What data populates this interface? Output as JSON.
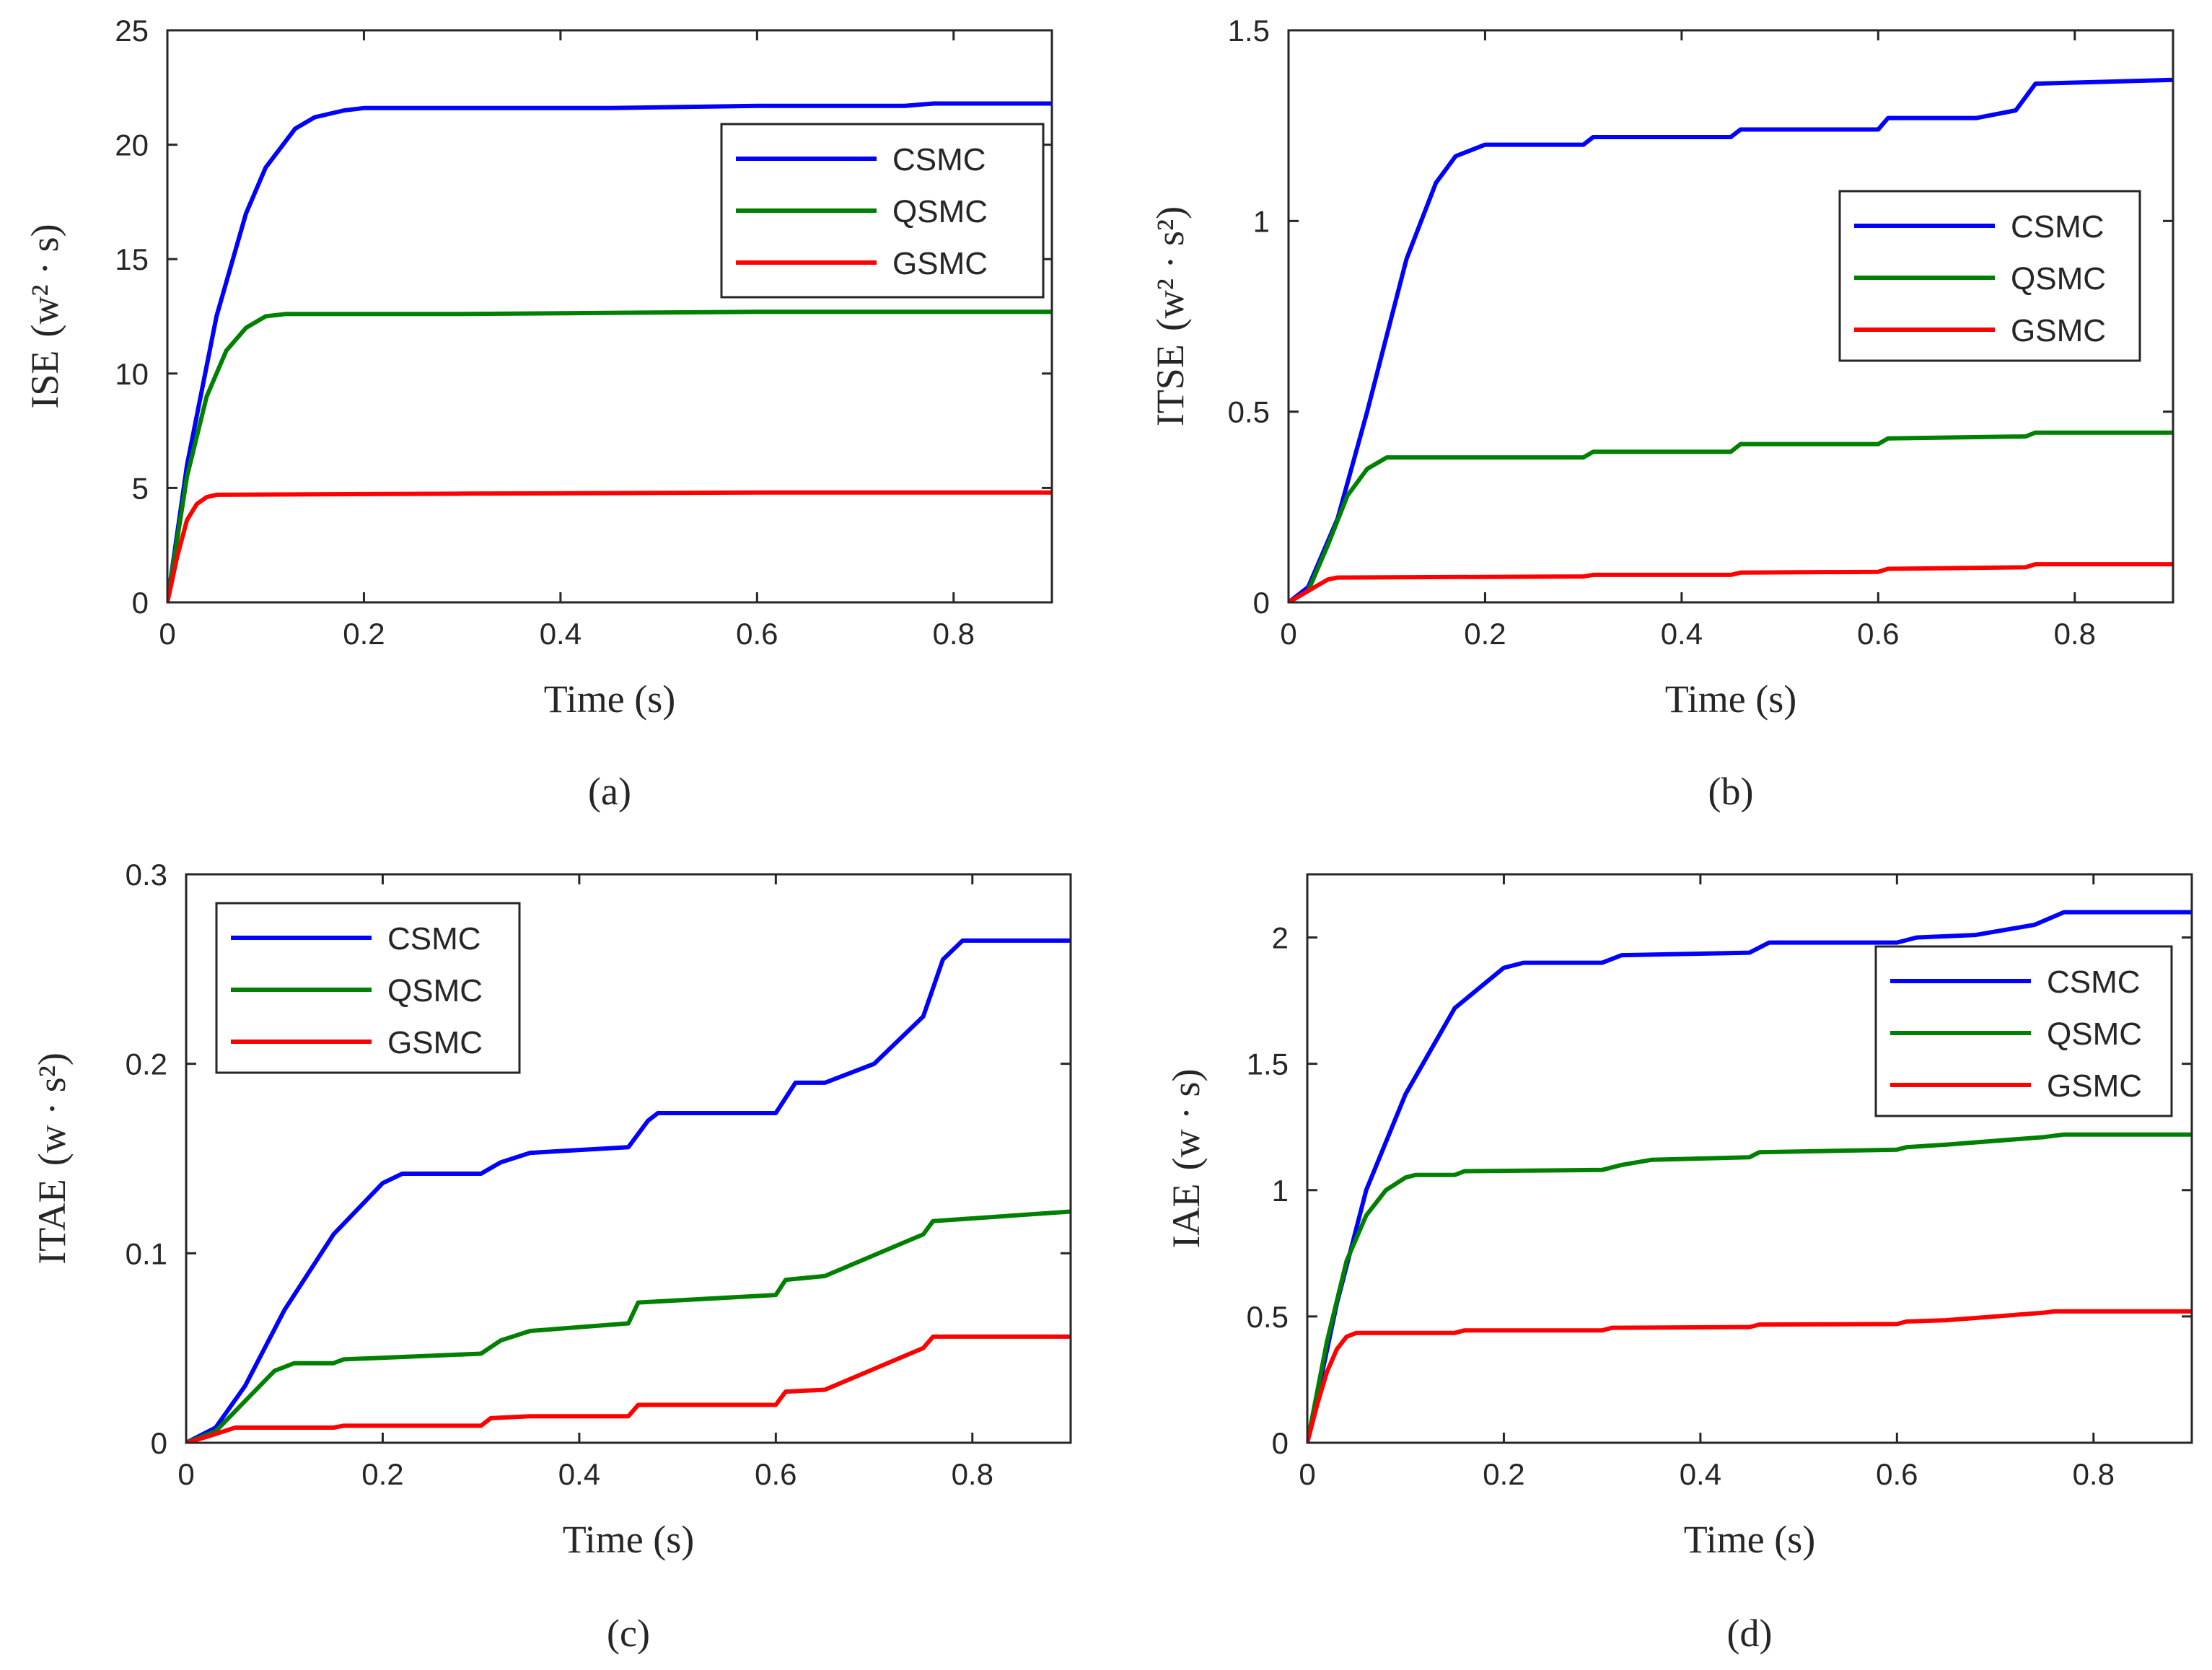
{
  "figure": {
    "colors": {
      "CSMC": "#0000ff",
      "QSMC": "#008000",
      "GSMC": "#ff0000"
    }
  },
  "chart_data": [
    {
      "panel": "(a)",
      "type": "line",
      "xlabel": "Time (s)",
      "ylabel": "ISE",
      "yunit": "(w² · s)",
      "xlim": [
        0,
        0.9
      ],
      "ylim": [
        0,
        25
      ],
      "xticks": [
        0,
        0.2,
        0.4,
        0.6,
        0.8
      ],
      "xtick_labels": [
        "0",
        "0.2",
        "0.4",
        "0.6",
        "0.8"
      ],
      "yticks": [
        0,
        5,
        10,
        15,
        20,
        25
      ],
      "ytick_labels": [
        "0",
        "5",
        "10",
        "15",
        "20",
        "25"
      ],
      "legend": {
        "position": "top-right",
        "entries": [
          "CSMC",
          "QSMC",
          "GSMC"
        ]
      },
      "series": [
        {
          "name": "CSMC",
          "x": [
            0,
            0.02,
            0.05,
            0.08,
            0.1,
            0.13,
            0.15,
            0.18,
            0.2,
            0.3,
            0.45,
            0.6,
            0.75,
            0.78,
            0.9
          ],
          "y": [
            0,
            6,
            12.5,
            17,
            19,
            20.7,
            21.2,
            21.5,
            21.6,
            21.6,
            21.6,
            21.7,
            21.7,
            21.8,
            21.8
          ]
        },
        {
          "name": "QSMC",
          "x": [
            0,
            0.02,
            0.04,
            0.06,
            0.08,
            0.1,
            0.12,
            0.3,
            0.6,
            0.9
          ],
          "y": [
            0,
            5.5,
            9,
            11,
            12,
            12.5,
            12.6,
            12.6,
            12.7,
            12.7
          ]
        },
        {
          "name": "GSMC",
          "x": [
            0,
            0.01,
            0.02,
            0.03,
            0.04,
            0.05,
            0.3,
            0.6,
            0.9
          ],
          "y": [
            0,
            2,
            3.6,
            4.3,
            4.6,
            4.7,
            4.75,
            4.8,
            4.8
          ]
        }
      ]
    },
    {
      "panel": "(b)",
      "type": "line",
      "xlabel": "Time (s)",
      "ylabel": "ITSE",
      "yunit": "(w² · s²)",
      "xlim": [
        0,
        0.9
      ],
      "ylim": [
        0,
        1.5
      ],
      "xticks": [
        0,
        0.2,
        0.4,
        0.6,
        0.8
      ],
      "xtick_labels": [
        "0",
        "0.2",
        "0.4",
        "0.6",
        "0.8"
      ],
      "yticks": [
        0,
        0.5,
        1,
        1.5
      ],
      "ytick_labels": [
        "0",
        "0.5",
        "1",
        "1.5"
      ],
      "legend": {
        "position": "right",
        "entries": [
          "CSMC",
          "QSMC",
          "GSMC"
        ]
      },
      "series": [
        {
          "name": "CSMC",
          "x": [
            0,
            0.02,
            0.05,
            0.08,
            0.1,
            0.12,
            0.15,
            0.17,
            0.2,
            0.3,
            0.31,
            0.45,
            0.46,
            0.6,
            0.61,
            0.7,
            0.74,
            0.76,
            0.9
          ],
          "y": [
            0,
            0.04,
            0.22,
            0.5,
            0.7,
            0.9,
            1.1,
            1.17,
            1.2,
            1.2,
            1.22,
            1.22,
            1.24,
            1.24,
            1.27,
            1.27,
            1.29,
            1.36,
            1.37
          ]
        },
        {
          "name": "QSMC",
          "x": [
            0,
            0.02,
            0.04,
            0.06,
            0.08,
            0.1,
            0.3,
            0.31,
            0.45,
            0.46,
            0.6,
            0.61,
            0.75,
            0.76,
            0.9
          ],
          "y": [
            0,
            0.03,
            0.15,
            0.28,
            0.35,
            0.38,
            0.38,
            0.395,
            0.395,
            0.415,
            0.415,
            0.43,
            0.435,
            0.445,
            0.445
          ]
        },
        {
          "name": "GSMC",
          "x": [
            0,
            0.02,
            0.04,
            0.05,
            0.3,
            0.31,
            0.45,
            0.46,
            0.6,
            0.61,
            0.75,
            0.76,
            0.9
          ],
          "y": [
            0,
            0.03,
            0.06,
            0.065,
            0.068,
            0.072,
            0.072,
            0.078,
            0.08,
            0.088,
            0.092,
            0.1,
            0.1
          ]
        }
      ]
    },
    {
      "panel": "(c)",
      "type": "line",
      "xlabel": "Time (s)",
      "ylabel": "ITAE",
      "yunit": "(w · s²)",
      "xlim": [
        0,
        0.9
      ],
      "ylim": [
        0,
        0.3
      ],
      "xticks": [
        0,
        0.2,
        0.4,
        0.6,
        0.8
      ],
      "xtick_labels": [
        "0",
        "0.2",
        "0.4",
        "0.6",
        "0.8"
      ],
      "yticks": [
        0,
        0.1,
        0.2,
        0.3
      ],
      "ytick_labels": [
        "0",
        "0.1",
        "0.2",
        "0.3"
      ],
      "legend": {
        "position": "top-left",
        "entries": [
          "CSMC",
          "QSMC",
          "GSMC"
        ]
      },
      "series": [
        {
          "name": "CSMC",
          "x": [
            0,
            0.03,
            0.06,
            0.1,
            0.15,
            0.2,
            0.22,
            0.3,
            0.32,
            0.35,
            0.45,
            0.47,
            0.48,
            0.6,
            0.62,
            0.65,
            0.7,
            0.75,
            0.77,
            0.79,
            0.9
          ],
          "y": [
            0,
            0.008,
            0.03,
            0.07,
            0.11,
            0.137,
            0.142,
            0.142,
            0.148,
            0.153,
            0.156,
            0.17,
            0.174,
            0.174,
            0.19,
            0.19,
            0.2,
            0.225,
            0.255,
            0.265,
            0.265
          ]
        },
        {
          "name": "QSMC",
          "x": [
            0,
            0.03,
            0.06,
            0.09,
            0.11,
            0.15,
            0.16,
            0.3,
            0.32,
            0.35,
            0.45,
            0.46,
            0.6,
            0.61,
            0.65,
            0.75,
            0.76,
            0.9
          ],
          "y": [
            0,
            0.006,
            0.022,
            0.038,
            0.042,
            0.042,
            0.044,
            0.047,
            0.054,
            0.059,
            0.063,
            0.074,
            0.078,
            0.086,
            0.088,
            0.11,
            0.117,
            0.122
          ]
        },
        {
          "name": "GSMC",
          "x": [
            0,
            0.02,
            0.05,
            0.15,
            0.16,
            0.3,
            0.31,
            0.35,
            0.45,
            0.46,
            0.6,
            0.61,
            0.65,
            0.75,
            0.76,
            0.9
          ],
          "y": [
            0,
            0.003,
            0.008,
            0.008,
            0.009,
            0.009,
            0.013,
            0.014,
            0.014,
            0.02,
            0.02,
            0.027,
            0.028,
            0.05,
            0.056,
            0.056
          ]
        }
      ]
    },
    {
      "panel": "(d)",
      "type": "line",
      "xlabel": "Time (s)",
      "ylabel": "IAE",
      "yunit": "(w · s)",
      "xlim": [
        0,
        0.9
      ],
      "ylim": [
        0,
        2.25
      ],
      "xticks": [
        0,
        0.2,
        0.4,
        0.6,
        0.8
      ],
      "xtick_labels": [
        "0",
        "0.2",
        "0.4",
        "0.6",
        "0.8"
      ],
      "yticks": [
        0,
        0.5,
        1,
        1.5,
        2
      ],
      "ytick_labels": [
        "0",
        "0.5",
        "1",
        "1.5",
        "2"
      ],
      "legend": {
        "position": "top-right",
        "entries": [
          "CSMC",
          "QSMC",
          "GSMC"
        ]
      },
      "series": [
        {
          "name": "CSMC",
          "x": [
            0,
            0.03,
            0.06,
            0.1,
            0.15,
            0.2,
            0.22,
            0.3,
            0.32,
            0.45,
            0.47,
            0.6,
            0.62,
            0.68,
            0.74,
            0.77,
            0.9
          ],
          "y": [
            0,
            0.55,
            1.0,
            1.38,
            1.72,
            1.88,
            1.9,
            1.9,
            1.93,
            1.94,
            1.98,
            1.98,
            2.0,
            2.01,
            2.05,
            2.1,
            2.1
          ]
        },
        {
          "name": "QSMC",
          "x": [
            0,
            0.02,
            0.04,
            0.06,
            0.08,
            0.1,
            0.11,
            0.15,
            0.16,
            0.3,
            0.32,
            0.35,
            0.45,
            0.46,
            0.6,
            0.61,
            0.65,
            0.75,
            0.77,
            0.9
          ],
          "y": [
            0,
            0.4,
            0.72,
            0.9,
            1.0,
            1.05,
            1.06,
            1.06,
            1.075,
            1.08,
            1.1,
            1.12,
            1.13,
            1.15,
            1.16,
            1.17,
            1.18,
            1.21,
            1.22,
            1.22
          ]
        },
        {
          "name": "GSMC",
          "x": [
            0,
            0.01,
            0.02,
            0.03,
            0.04,
            0.05,
            0.15,
            0.16,
            0.3,
            0.31,
            0.45,
            0.46,
            0.6,
            0.61,
            0.65,
            0.75,
            0.76,
            0.9
          ],
          "y": [
            0,
            0.15,
            0.28,
            0.37,
            0.42,
            0.435,
            0.435,
            0.445,
            0.445,
            0.455,
            0.458,
            0.468,
            0.47,
            0.48,
            0.485,
            0.515,
            0.52,
            0.52
          ]
        }
      ]
    }
  ]
}
